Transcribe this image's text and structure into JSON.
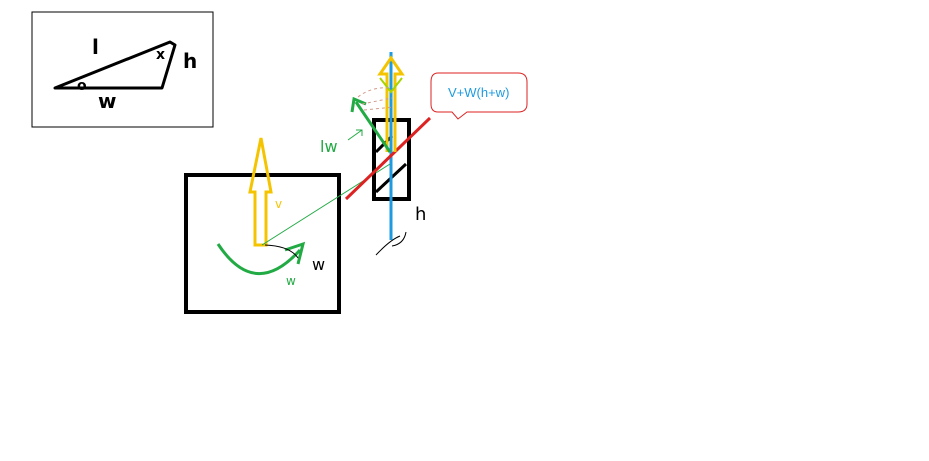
{
  "inset": {
    "label_l": "l",
    "label_h": "h",
    "label_w": "w",
    "angle_marker": "o",
    "angle_x": "x"
  },
  "box": {
    "label_v": "v",
    "label_w": "w",
    "label_w_outside": "w"
  },
  "mirror": {
    "label_h": "h",
    "label_lw": "lw"
  },
  "callout": {
    "text": "V+W(h+w)"
  },
  "colors": {
    "yellow": "#f5c400",
    "green": "#22aa44",
    "red": "#dd2222",
    "blue": "#1e9be0",
    "black": "#000000",
    "callout_border": "#dd2222",
    "callout_text": "#1e9be0"
  }
}
